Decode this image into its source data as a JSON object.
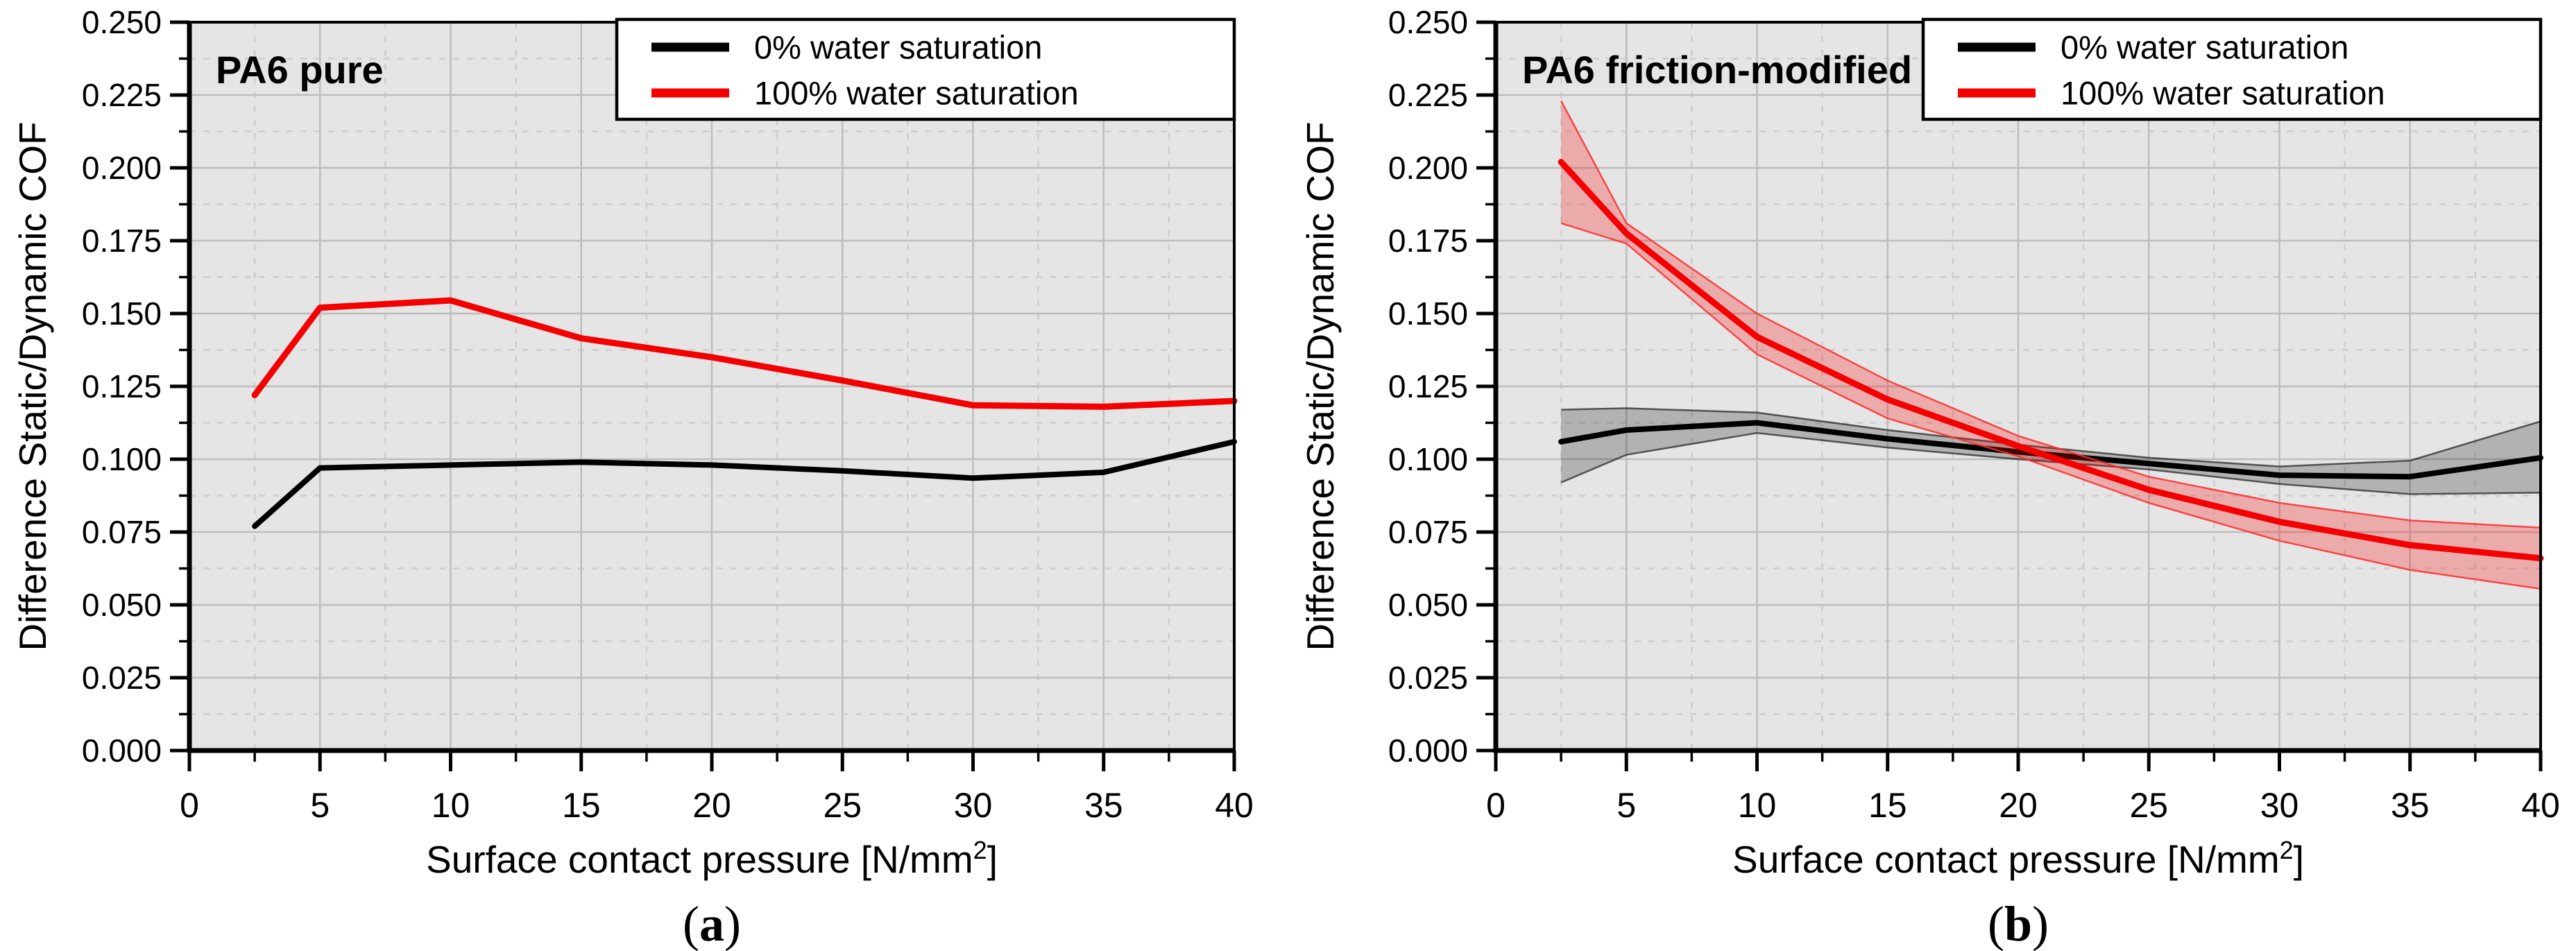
{
  "styles": {
    "plot_bg": "#e5e5e5",
    "grid_major": "#bdbdbd",
    "grid_minor": "#cdcdcd",
    "frame": "#000000",
    "legend_bg": "#ffffff",
    "legend_border": "#000000",
    "black_series": "#000000",
    "red_series": "#f40000",
    "black_band_fill": "rgba(0,0,0,0.22)",
    "red_band_fill": "rgba(255,0,0,0.25)",
    "black_band_edge": "rgba(40,40,40,0.75)",
    "red_band_edge": "rgba(255,45,45,0.85)"
  },
  "chart_data": [
    {
      "id": "a",
      "type": "line",
      "title": "PA6 pure",
      "caption": "(a)",
      "xlabel": "Surface contact pressure [N/mm²]",
      "ylabel": "Difference Static/Dynamic COF",
      "xlim": [
        0,
        40
      ],
      "ylim": [
        0.0,
        0.25
      ],
      "x_ticks": [
        0,
        5,
        10,
        15,
        20,
        25,
        30,
        35,
        40
      ],
      "x_tick_labels": [
        "0",
        "5",
        "10",
        "15",
        "20",
        "25",
        "30",
        "35",
        "40"
      ],
      "y_ticks": [
        0.0,
        0.025,
        0.05,
        0.075,
        0.1,
        0.125,
        0.15,
        0.175,
        0.2,
        0.225,
        0.25
      ],
      "y_tick_labels": [
        "0.000",
        "0.025",
        "0.050",
        "0.075",
        "0.100",
        "0.125",
        "0.150",
        "0.175",
        "0.200",
        "0.225",
        "0.250"
      ],
      "grid": {
        "major": "solid",
        "minor": "dashed"
      },
      "legend_position": "top-right",
      "x": [
        2.5,
        5,
        10,
        15,
        20,
        25,
        30,
        35,
        40
      ],
      "series": [
        {
          "name": "0% water saturation",
          "color": "#000000",
          "values": [
            0.077,
            0.097,
            0.098,
            0.099,
            0.098,
            0.096,
            0.0935,
            0.0955,
            0.106
          ]
        },
        {
          "name": "100% water saturation",
          "color": "#f40000",
          "values": [
            0.122,
            0.152,
            0.1545,
            0.1415,
            0.135,
            0.127,
            0.1185,
            0.118,
            0.12
          ]
        }
      ]
    },
    {
      "id": "b",
      "type": "line",
      "title": "PA6 friction-modified",
      "caption": "(b)",
      "xlabel": "Surface contact pressure [N/mm²]",
      "ylabel": "Difference Static/Dynamic COF",
      "xlim": [
        0,
        40
      ],
      "ylim": [
        0.0,
        0.25
      ],
      "x_ticks": [
        0,
        5,
        10,
        15,
        20,
        25,
        30,
        35,
        40
      ],
      "x_tick_labels": [
        "0",
        "5",
        "10",
        "15",
        "20",
        "25",
        "30",
        "35",
        "40"
      ],
      "y_ticks": [
        0.0,
        0.025,
        0.05,
        0.075,
        0.1,
        0.125,
        0.15,
        0.175,
        0.2,
        0.225,
        0.25
      ],
      "y_tick_labels": [
        "0.000",
        "0.025",
        "0.050",
        "0.075",
        "0.100",
        "0.125",
        "0.150",
        "0.175",
        "0.200",
        "0.225",
        "0.250"
      ],
      "grid": {
        "major": "solid",
        "minor": "dashed"
      },
      "legend_position": "top-right",
      "x": [
        2.5,
        5,
        10,
        15,
        20,
        25,
        30,
        35,
        40
      ],
      "series": [
        {
          "name": "0% water saturation",
          "color": "#000000",
          "band_fill": "rgba(0,0,0,0.22)",
          "band_edge": "rgba(40,40,40,0.75)",
          "values": [
            0.106,
            0.11,
            0.1125,
            0.107,
            0.1025,
            0.0985,
            0.0945,
            0.094,
            0.1005
          ],
          "band_upper": [
            0.117,
            0.1175,
            0.116,
            0.11,
            0.105,
            0.1005,
            0.0975,
            0.0995,
            0.113
          ],
          "band_lower": [
            0.092,
            0.1015,
            0.109,
            0.104,
            0.1,
            0.0965,
            0.0915,
            0.088,
            0.0885
          ]
        },
        {
          "name": "100% water saturation",
          "color": "#f40000",
          "band_fill": "rgba(255,0,0,0.25)",
          "band_edge": "rgba(255,45,45,0.85)",
          "values": [
            0.202,
            0.1775,
            0.142,
            0.1205,
            0.1045,
            0.0895,
            0.0785,
            0.0705,
            0.066
          ],
          "band_upper": [
            0.223,
            0.181,
            0.15,
            0.127,
            0.108,
            0.094,
            0.085,
            0.079,
            0.0765
          ],
          "band_lower": [
            0.181,
            0.174,
            0.136,
            0.114,
            0.101,
            0.085,
            0.072,
            0.062,
            0.0555
          ]
        }
      ]
    }
  ]
}
